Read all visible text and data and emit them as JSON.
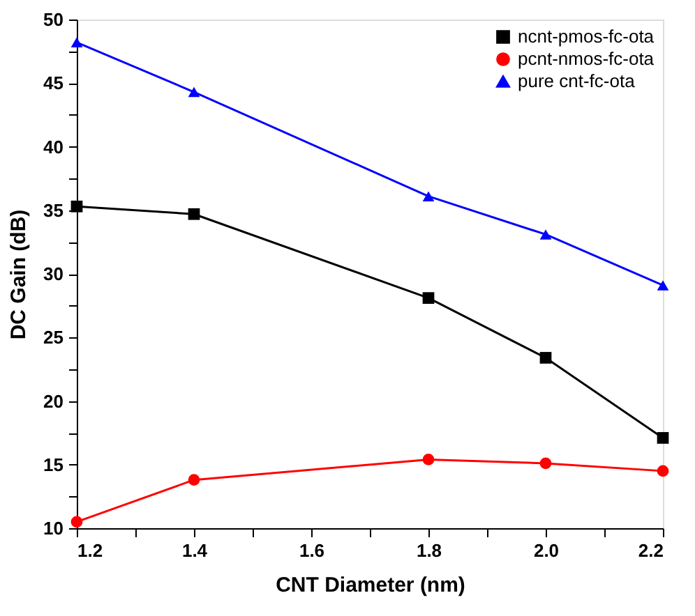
{
  "chart_data": {
    "type": "line",
    "xlabel": "CNT Diameter (nm)",
    "ylabel": "DC Gain (dB)",
    "x": [
      1.2,
      1.4,
      1.8,
      2.0,
      2.2
    ],
    "xlim": [
      1.2,
      2.2
    ],
    "ylim": [
      10,
      50
    ],
    "xticks": [
      1.2,
      {
        "value": 1.3,
        "label": null
      },
      1.4,
      {
        "value": 1.5,
        "label": null
      },
      1.6,
      {
        "value": 1.7,
        "label": null
      },
      1.8,
      {
        "value": 1.9,
        "label": null
      },
      {
        "value": 2.0,
        "label": "2.0"
      },
      {
        "value": 2.1,
        "label": null
      },
      2.2
    ],
    "yticks": [
      10,
      {
        "value": 12.5,
        "label": null
      },
      15,
      {
        "value": 17.5,
        "label": null
      },
      20,
      {
        "value": 22.5,
        "label": null
      },
      25,
      {
        "value": 27.5,
        "label": null
      },
      30,
      {
        "value": 32.5,
        "label": null
      },
      35,
      {
        "value": 37.5,
        "label": null
      },
      40,
      {
        "value": 42.5,
        "label": null
      },
      45,
      {
        "value": 47.5,
        "label": null
      },
      50
    ],
    "series": [
      {
        "name": "ncnt-pmos-fc-ota",
        "color": "#000000",
        "marker": "square",
        "values": [
          35.3,
          34.7,
          28.1,
          23.4,
          17.1
        ]
      },
      {
        "name": "pcnt-nmos-fc-ota",
        "color": "#ff0000",
        "marker": "circle",
        "values": [
          10.5,
          13.8,
          15.4,
          15.1,
          14.5
        ]
      },
      {
        "name": "pure cnt-fc-ota",
        "color": "#0000ff",
        "marker": "triangle",
        "values": [
          48.2,
          44.3,
          36.1,
          33.1,
          29.1
        ]
      }
    ],
    "grid": false,
    "legend": "top right",
    "line_style": "solid"
  }
}
